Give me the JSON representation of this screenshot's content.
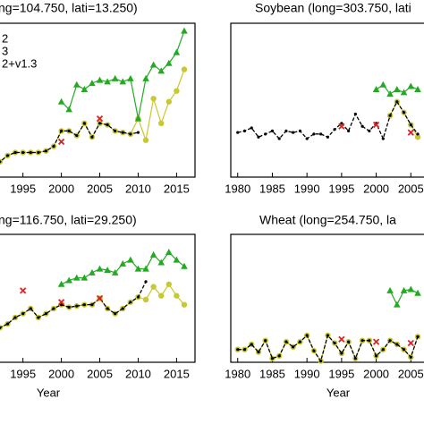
{
  "chart_data": [
    {
      "type": "line",
      "title": "ng=104.750, lati=13.250)",
      "xlim": [
        1979.2,
        2017.4
      ],
      "ylim": [
        0,
        10
      ],
      "xticks": [
        1995,
        2000,
        2005,
        2010,
        2015
      ],
      "legend": "upper left",
      "series": [
        {
          "name": "2+v1.3",
          "color": "#c8c832",
          "line": "solid",
          "marker": "circle",
          "x": [
            1990,
            1991,
            1992,
            1993,
            1994,
            1995,
            1996,
            1997,
            1998,
            1999,
            2000,
            2001,
            2002,
            2003,
            2004,
            2005,
            2006,
            2007,
            2008,
            2009,
            2010,
            2011,
            2012,
            2013,
            2014,
            2015,
            2016
          ],
          "values": [
            1.6,
            1.5,
            1.0,
            1.4,
            1.6,
            1.6,
            1.6,
            1.6,
            1.7,
            2.0,
            3.0,
            3.0,
            2.7,
            3.5,
            2.6,
            3.5,
            3.4,
            3.0,
            2.9,
            2.8,
            3.8,
            2.4,
            5.1,
            3.5,
            4.9,
            5.6,
            7.0
          ]
        },
        {
          "name": "2",
          "color": "#000000",
          "line": "dashed",
          "marker": "dot",
          "x": [
            1990,
            1991,
            1992,
            1993,
            1994,
            1995,
            1996,
            1997,
            1998,
            1999,
            2000,
            2001,
            2002,
            2003,
            2004,
            2005,
            2006,
            2007,
            2008,
            2009,
            2010
          ],
          "values": [
            1.6,
            1.5,
            1.0,
            1.4,
            1.6,
            1.6,
            1.6,
            1.6,
            1.7,
            2.0,
            3.0,
            3.0,
            2.7,
            3.5,
            2.6,
            3.5,
            3.4,
            3.0,
            2.9,
            2.8,
            2.9
          ]
        },
        {
          "name": "3",
          "color": "#22aa22",
          "line": "solid",
          "marker": "triangle",
          "x": [
            2000,
            2001,
            2002,
            2003,
            2004,
            2005,
            2006,
            2007,
            2008,
            2009,
            2010,
            2011,
            2012,
            2013,
            2014,
            2015,
            2016
          ],
          "values": [
            4.9,
            4.4,
            6.0,
            5.7,
            6.1,
            6.3,
            6.2,
            6.4,
            6.2,
            6.4,
            3.8,
            6.4,
            7.3,
            6.9,
            7.4,
            8.1,
            9.5
          ]
        },
        {
          "color": "#dd2222",
          "line": "none",
          "marker": "x",
          "x": [
            2000,
            2005
          ],
          "values": [
            2.3,
            3.8
          ]
        }
      ]
    },
    {
      "type": "line",
      "title": "Soybean (long=303.750, lati",
      "xlim": [
        1979,
        2010
      ],
      "ylim": [
        0,
        10
      ],
      "xticks": [
        1980,
        1985,
        1990,
        1995,
        2000,
        2005
      ],
      "series": [
        {
          "color": "#c8c832",
          "line": "solid",
          "marker": "circle",
          "x": [
            2002,
            2003,
            2004,
            2005,
            2006
          ],
          "values": [
            4.0,
            4.9,
            4.2,
            3.4,
            2.6
          ]
        },
        {
          "color": "#000000",
          "line": "dashed",
          "marker": "dot",
          "x": [
            1980,
            1981,
            1982,
            1983,
            1984,
            1985,
            1986,
            1987,
            1988,
            1989,
            1990,
            1991,
            1992,
            1993,
            1994,
            1995,
            1996,
            1997,
            1998,
            1999,
            2000,
            2001,
            2002,
            2003,
            2004,
            2005,
            2006
          ],
          "values": [
            2.9,
            3.0,
            3.2,
            2.6,
            2.8,
            3.0,
            2.5,
            3.0,
            2.9,
            3.0,
            2.5,
            2.8,
            2.8,
            2.6,
            3.1,
            3.5,
            3.0,
            4.1,
            3.3,
            3.0,
            3.5,
            2.5,
            4.0,
            4.9,
            4.2,
            3.4,
            2.8
          ]
        },
        {
          "color": "#22aa22",
          "line": "solid",
          "marker": "triangle",
          "x": [
            2000,
            2001,
            2002,
            2003,
            2004,
            2005,
            2006
          ],
          "values": [
            5.7,
            6.0,
            5.4,
            5.7,
            5.5,
            5.9,
            5.7
          ]
        },
        {
          "color": "#dd2222",
          "line": "none",
          "marker": "x",
          "x": [
            1995,
            2000,
            2005
          ],
          "values": [
            3.3,
            3.4,
            2.9
          ]
        }
      ]
    },
    {
      "type": "line",
      "title": "ng=116.750, lati=29.250)",
      "xlabel": "Year",
      "xlim": [
        1979.2,
        2017.4
      ],
      "ylim": [
        0,
        10
      ],
      "xticks": [
        1995,
        2000,
        2005,
        2010,
        2015
      ],
      "series": [
        {
          "color": "#c8c832",
          "line": "solid",
          "marker": "circle",
          "x": [
            1990,
            1991,
            1992,
            1993,
            1994,
            1995,
            1996,
            1997,
            1998,
            1999,
            2000,
            2001,
            2002,
            2003,
            2004,
            2005,
            2006,
            2007,
            2008,
            2009,
            2010,
            2011,
            2012,
            2013,
            2014,
            2015,
            2016
          ],
          "values": [
            2.4,
            2.8,
            2.7,
            3.0,
            3.5,
            3.8,
            4.2,
            3.5,
            3.8,
            4.2,
            4.5,
            4.3,
            4.4,
            4.5,
            4.5,
            5.0,
            4.2,
            3.8,
            4.2,
            4.7,
            5.1,
            4.9,
            5.9,
            5.2,
            6.1,
            5.2,
            4.5
          ]
        },
        {
          "color": "#000000",
          "line": "dashed",
          "marker": "dot",
          "x": [
            1990,
            1991,
            1992,
            1993,
            1994,
            1995,
            1996,
            1997,
            1998,
            1999,
            2000,
            2001,
            2002,
            2003,
            2004,
            2005,
            2006,
            2007,
            2008,
            2009,
            2010,
            2011
          ],
          "values": [
            2.4,
            2.8,
            2.7,
            3.0,
            3.5,
            3.8,
            4.2,
            3.5,
            3.8,
            4.2,
            4.5,
            4.3,
            4.4,
            4.5,
            4.5,
            5.0,
            4.2,
            3.8,
            4.2,
            4.7,
            5.1,
            6.3
          ]
        },
        {
          "color": "#22aa22",
          "line": "solid",
          "marker": "triangle",
          "x": [
            2000,
            2001,
            2002,
            2003,
            2004,
            2005,
            2006,
            2007,
            2008,
            2009,
            2010,
            2011,
            2012,
            2013,
            2014,
            2015,
            2016
          ],
          "values": [
            6.1,
            6.4,
            6.6,
            6.6,
            7.0,
            7.3,
            7.2,
            7.0,
            7.7,
            8.0,
            7.3,
            7.3,
            8.4,
            7.8,
            8.6,
            8.0,
            7.5
          ]
        },
        {
          "color": "#dd2222",
          "line": "none",
          "marker": "x",
          "x": [
            1995,
            2000,
            2005
          ],
          "values": [
            5.6,
            4.7,
            5.0
          ]
        }
      ]
    },
    {
      "type": "line",
      "title": "Wheat (long=254.750, la",
      "xlabel": "Year",
      "xlim": [
        1979,
        2010
      ],
      "ylim": [
        0,
        10
      ],
      "xticks": [
        1980,
        1985,
        1990,
        1995,
        2000,
        2005
      ],
      "series": [
        {
          "color": "#c8c832",
          "line": "solid",
          "marker": "circle",
          "x": [
            1980,
            1981,
            1982,
            1983,
            1984,
            1985,
            1986,
            1987,
            1988,
            1989,
            1990,
            1991,
            1992,
            1993,
            1994,
            1995,
            1996,
            1997,
            1998,
            1999,
            2000,
            2001,
            2002,
            2003,
            2004,
            2005,
            2006
          ],
          "values": [
            1.0,
            1.0,
            1.4,
            0.8,
            1.7,
            0.3,
            0.5,
            1.6,
            1.2,
            1.6,
            2.1,
            0.9,
            0.1,
            2.1,
            1.5,
            0.7,
            1.6,
            0.3,
            1.7,
            1.7,
            0.5,
            1.0,
            1.7,
            1.4,
            1.0,
            0.4,
            2.0
          ]
        },
        {
          "color": "#000000",
          "line": "dashed",
          "marker": "dot",
          "x": [
            1980,
            1981,
            1982,
            1983,
            1984,
            1985,
            1986,
            1987,
            1988,
            1989,
            1990,
            1991,
            1992,
            1993,
            1994,
            1995,
            1996,
            1997,
            1998,
            1999,
            2000,
            2001,
            2002,
            2003,
            2004,
            2005,
            2006
          ],
          "values": [
            1.0,
            1.0,
            1.4,
            0.8,
            1.7,
            0.3,
            0.5,
            1.6,
            1.2,
            1.6,
            2.1,
            0.9,
            0.1,
            2.1,
            1.5,
            0.7,
            1.6,
            0.3,
            1.7,
            1.7,
            0.5,
            1.0,
            1.7,
            1.4,
            1.0,
            0.4,
            2.0
          ]
        },
        {
          "color": "#22aa22",
          "line": "solid",
          "marker": "triangle",
          "x": [
            2002,
            2003,
            2004,
            2005,
            2006
          ],
          "values": [
            5.6,
            4.5,
            5.6,
            5.7,
            5.4
          ]
        },
        {
          "color": "#dd2222",
          "line": "none",
          "marker": "x",
          "x": [
            1995,
            2000,
            2005
          ],
          "values": [
            1.8,
            1.6,
            1.5
          ]
        }
      ]
    }
  ]
}
